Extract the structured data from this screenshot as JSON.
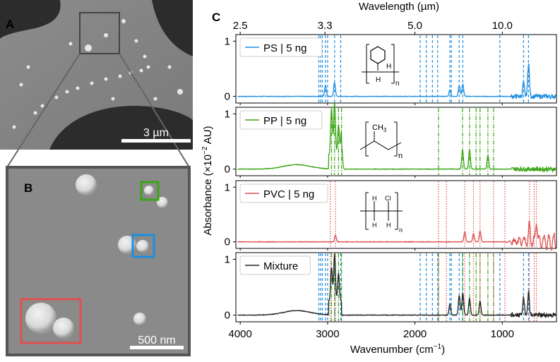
{
  "panels": {
    "a": {
      "letter": "A",
      "scalebar_label": "3 µm"
    },
    "b": {
      "letter": "B",
      "scalebar_label": "500 nm"
    },
    "c": {
      "letter": "C"
    }
  },
  "chart_data": {
    "type": "line",
    "title": "",
    "xlabel": "Wavenumber (cm−1)",
    "xlabel_main": "Wavenumber (cm",
    "xlabel_exp": "−1",
    "xlabel_close": ")",
    "ylabel": "Absorbance (×10−2 AU)",
    "ylabel_main": "Absorbance (×10",
    "ylabel_exp": "−2",
    "ylabel_close": " AU)",
    "top_xlabel": "Wavelength (µm)",
    "xlim": [
      4050,
      380
    ],
    "ylim": [
      -0.12,
      1.12
    ],
    "bottom_ticks": [
      4000,
      3000,
      2000,
      1000
    ],
    "bottom_tick_labels": [
      "4000",
      "3000",
      "2000",
      "1000"
    ],
    "top_ticks": [
      2.5,
      3.3,
      5.0,
      10.0
    ],
    "top_tick_labels": [
      "2.5",
      "3.3",
      "5.0",
      "10.0"
    ],
    "y_ticks": [
      0,
      1
    ],
    "y_tick_labels": [
      "0",
      "1"
    ],
    "series": [
      {
        "name": "PS | 5 ng",
        "color": "#1f8fe0",
        "marker_style": "dashed",
        "markers": [
          3100,
          3080,
          3060,
          3025,
          3000,
          2920,
          2850,
          1940,
          1870,
          1800,
          1740,
          1600,
          1583,
          1493,
          1452,
          1028,
          757,
          700
        ],
        "peaks": [
          [
            3025,
            0.2
          ],
          [
            2920,
            0.25
          ],
          [
            1600,
            0.12
          ],
          [
            1493,
            0.2
          ],
          [
            1452,
            0.22
          ],
          [
            757,
            0.25
          ],
          [
            700,
            0.6
          ]
        ]
      },
      {
        "name": "PP | 5 ng",
        "color": "#3aa516",
        "marker_style": "dashdot",
        "markers": [
          2955,
          2920,
          2875,
          2840,
          1730,
          1455,
          1375,
          1300,
          1255,
          1165,
          1100
        ],
        "peaks": [
          [
            2955,
            0.85
          ],
          [
            2920,
            0.95
          ],
          [
            2875,
            0.55
          ],
          [
            2840,
            0.45
          ],
          [
            1455,
            0.35
          ],
          [
            1375,
            0.35
          ],
          [
            1165,
            0.25
          ]
        ]
      },
      {
        "name": "PVC | 5 ng",
        "color": "#e05050",
        "marker_style": "dotted",
        "markers": [
          2970,
          2910,
          1730,
          1640,
          1430,
          1330,
          1255,
          1100,
          970,
          690,
          635,
          610
        ],
        "peaks": [
          [
            2910,
            0.12
          ],
          [
            1430,
            0.18
          ],
          [
            1330,
            0.15
          ],
          [
            1255,
            0.2
          ],
          [
            690,
            0.3
          ],
          [
            610,
            0.4
          ]
        ]
      },
      {
        "name": "Mixture",
        "color": "#222222",
        "peaks": [
          [
            2955,
            0.6
          ],
          [
            2920,
            0.85
          ],
          [
            2875,
            0.5
          ],
          [
            1600,
            0.2
          ],
          [
            1493,
            0.35
          ],
          [
            1452,
            0.4
          ],
          [
            1375,
            0.3
          ],
          [
            1255,
            0.25
          ],
          [
            757,
            0.3
          ],
          [
            700,
            0.4
          ]
        ]
      }
    ],
    "annotations": [
      {
        "panel": "PS",
        "label": "structure",
        "sub_h1": "H",
        "sub_h2": "H",
        "sub_n": "n"
      },
      {
        "panel": "PP",
        "label": "structure",
        "group": "CH",
        "group_sub": "3",
        "sub_n": "n"
      },
      {
        "panel": "PVC",
        "label": "structure",
        "h1": "H",
        "cl": "Cl",
        "h2": "H",
        "h3": "H",
        "sub_n": "n"
      }
    ]
  }
}
